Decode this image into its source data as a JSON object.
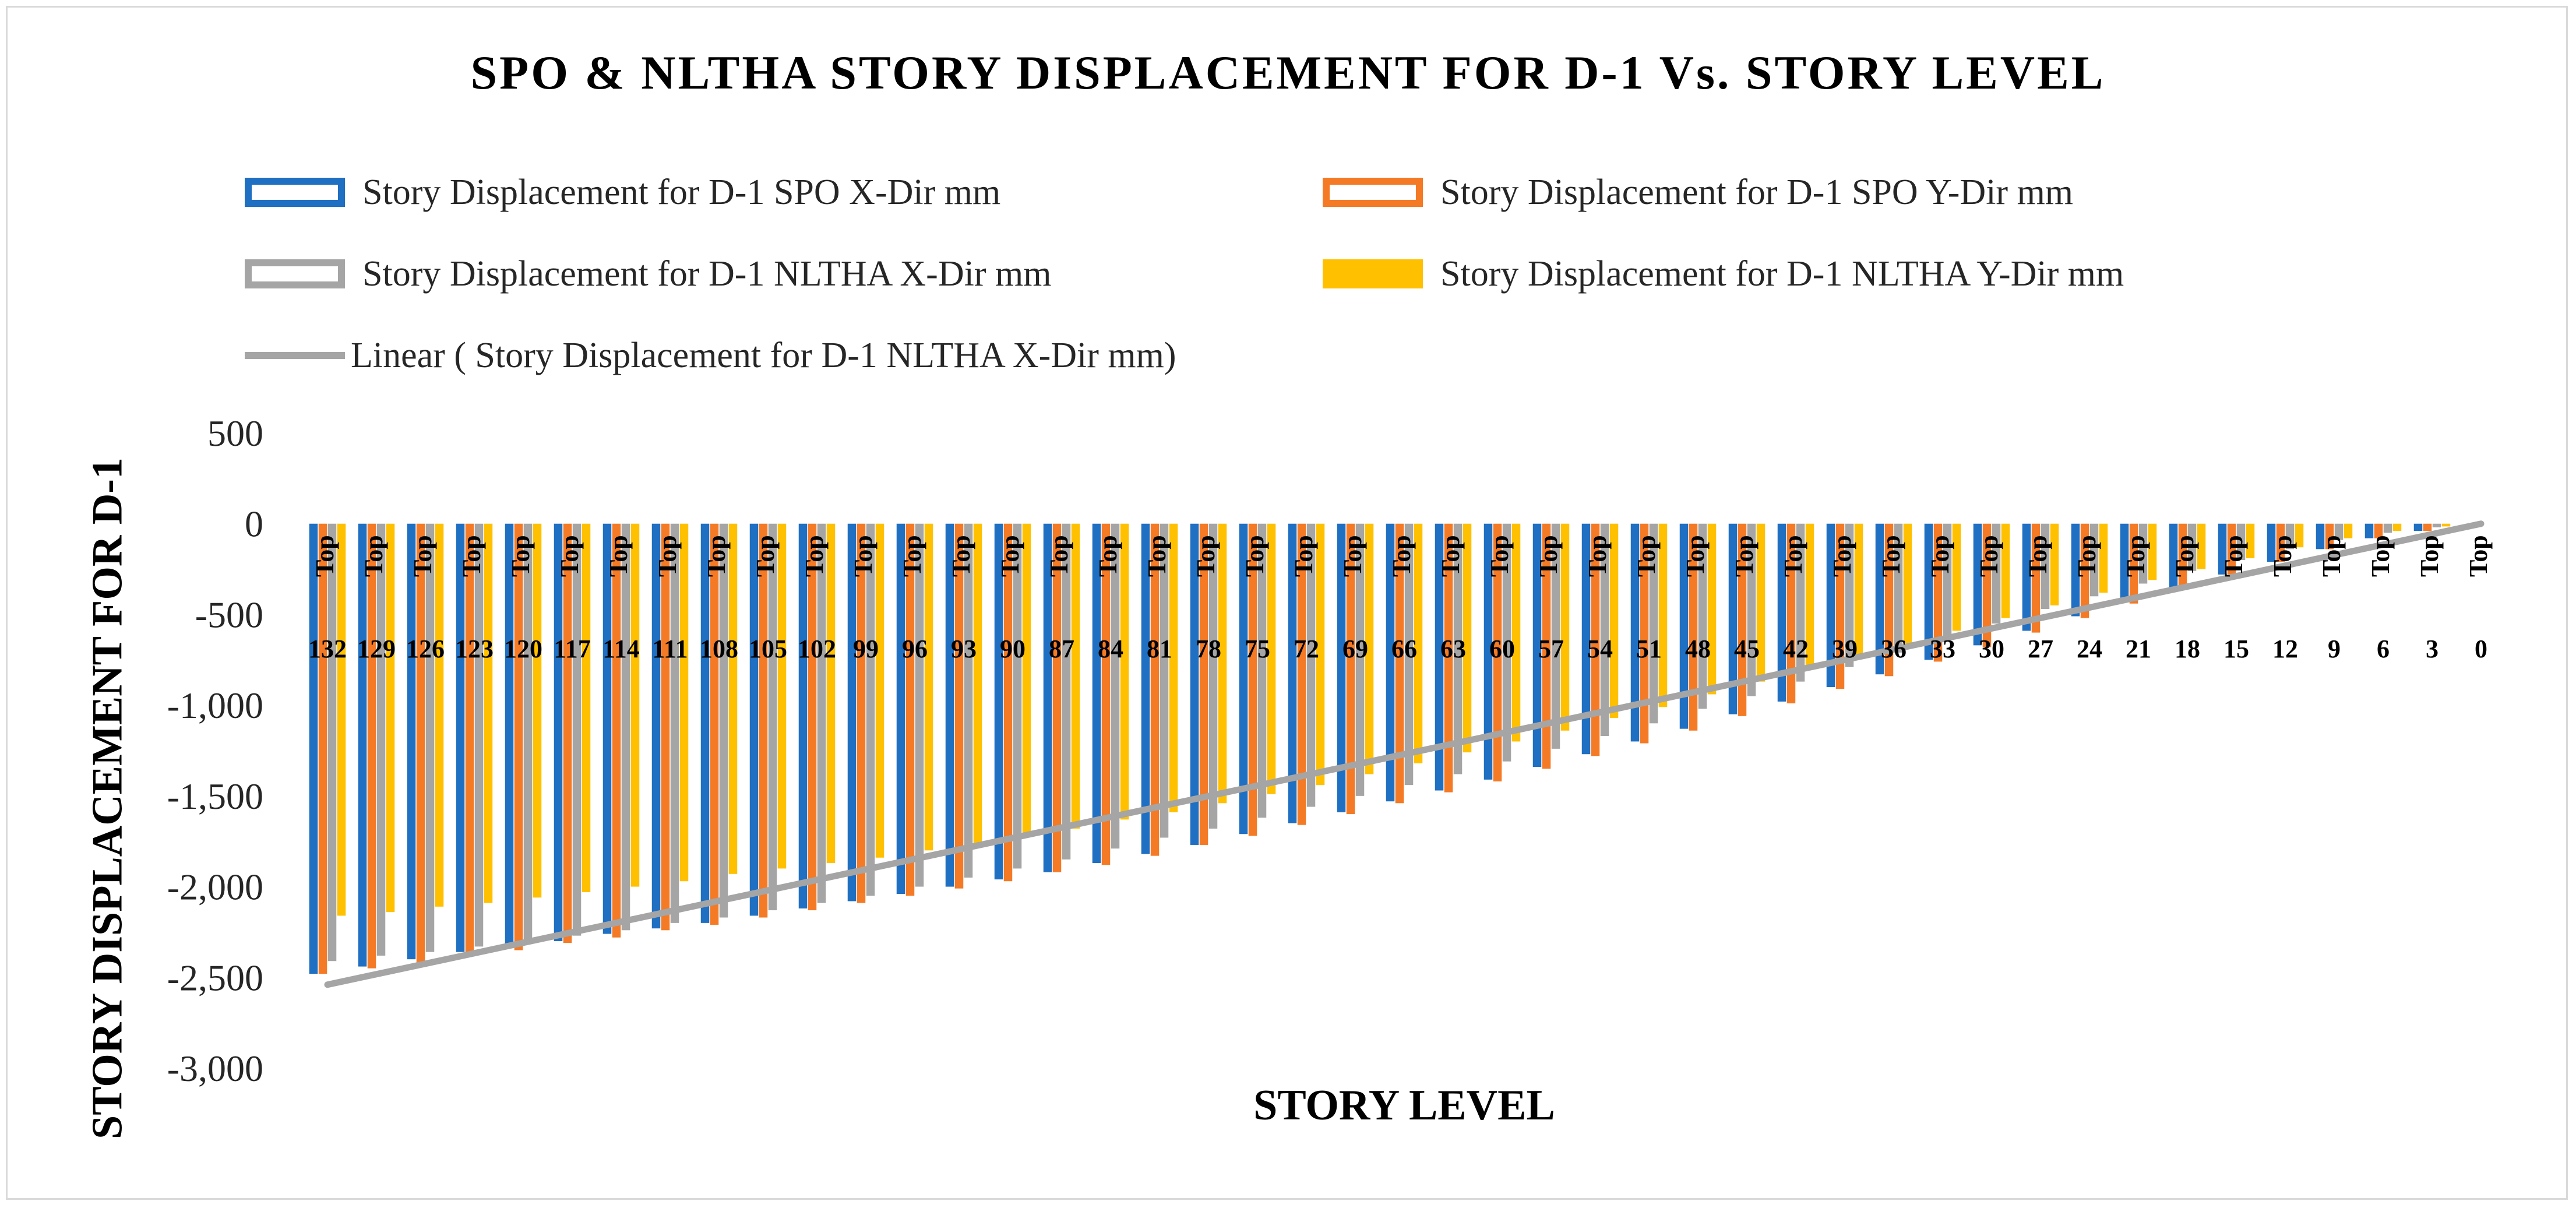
{
  "chart_data": {
    "type": "bar",
    "title": "SPO & NLTHA STORY DISPLACEMENT FOR D-1 Vs. STORY LEVEL",
    "xlabel": "STORY LEVEL",
    "ylabel": "STORY DISPLACEMENT FOR D-1",
    "ylim": [
      -3000,
      500
    ],
    "yticks": [
      500,
      0,
      -500,
      -1000,
      -1500,
      -2000,
      -2500,
      -3000
    ],
    "ytick_labels": [
      "500",
      "0",
      "-500",
      "-1,000",
      "-1,500",
      "-2,000",
      "-2,500",
      "-3,000"
    ],
    "category_top_label": "Top",
    "categories": [
      "132",
      "129",
      "126",
      "123",
      "120",
      "117",
      "114",
      "111",
      "108",
      "105",
      "102",
      "99",
      "96",
      "93",
      "90",
      "87",
      "84",
      "81",
      "78",
      "75",
      "72",
      "69",
      "66",
      "63",
      "60",
      "57",
      "54",
      "51",
      "48",
      "45",
      "42",
      "39",
      "36",
      "33",
      "30",
      "27",
      "24",
      "21",
      "18",
      "15",
      "12",
      "9",
      "6",
      "3",
      "0"
    ],
    "series": [
      {
        "name": "Story Displacement for D-1 SPO X-Dir mm",
        "color": "#1f6fc2",
        "values": [
          -2480,
          -2440,
          -2400,
          -2360,
          -2330,
          -2300,
          -2260,
          -2230,
          -2200,
          -2160,
          -2120,
          -2080,
          -2040,
          -2000,
          -1960,
          -1920,
          -1870,
          -1820,
          -1770,
          -1710,
          -1650,
          -1590,
          -1530,
          -1470,
          -1410,
          -1340,
          -1270,
          -1200,
          -1130,
          -1050,
          -980,
          -900,
          -830,
          -750,
          -670,
          -590,
          -510,
          -430,
          -350,
          -280,
          -210,
          -140,
          -80,
          -40,
          0
        ]
      },
      {
        "name": "Story Displacement for D-1 SPO Y-Dir mm",
        "color": "#f47a25",
        "values": [
          -2480,
          -2450,
          -2420,
          -2380,
          -2350,
          -2310,
          -2280,
          -2240,
          -2210,
          -2170,
          -2130,
          -2090,
          -2050,
          -2010,
          -1970,
          -1920,
          -1880,
          -1830,
          -1770,
          -1720,
          -1660,
          -1600,
          -1540,
          -1480,
          -1420,
          -1350,
          -1280,
          -1210,
          -1140,
          -1060,
          -990,
          -910,
          -840,
          -760,
          -680,
          -600,
          -520,
          -440,
          -360,
          -280,
          -210,
          -140,
          -80,
          -40,
          0
        ]
      },
      {
        "name": "Story Displacement for D-1 NLTHA X-Dir mm",
        "color": "#a5a5a5",
        "values": [
          -2410,
          -2380,
          -2360,
          -2330,
          -2300,
          -2270,
          -2240,
          -2200,
          -2170,
          -2130,
          -2090,
          -2050,
          -2000,
          -1950,
          -1900,
          -1850,
          -1790,
          -1730,
          -1680,
          -1620,
          -1560,
          -1500,
          -1440,
          -1380,
          -1310,
          -1240,
          -1170,
          -1100,
          -1020,
          -950,
          -870,
          -790,
          -710,
          -630,
          -550,
          -470,
          -400,
          -330,
          -260,
          -200,
          -140,
          -90,
          -50,
          -20,
          0
        ]
      },
      {
        "name": "Story Displacement for D-1 NLTHA Y-Dir mm",
        "color": "#ffc000",
        "values": [
          -2160,
          -2140,
          -2110,
          -2090,
          -2060,
          -2030,
          -2000,
          -1970,
          -1930,
          -1900,
          -1870,
          -1840,
          -1800,
          -1760,
          -1720,
          -1680,
          -1630,
          -1590,
          -1540,
          -1490,
          -1440,
          -1380,
          -1320,
          -1260,
          -1200,
          -1140,
          -1070,
          -1010,
          -940,
          -870,
          -800,
          -730,
          -660,
          -590,
          -520,
          -450,
          -380,
          -310,
          -250,
          -190,
          -130,
          -80,
          -40,
          -15,
          0
        ]
      }
    ],
    "trendline": {
      "name": "Linear ( Story Displacement for D-1 NLTHA X-Dir mm)",
      "color": "#a5a5a5",
      "start": -2540,
      "end": 0
    }
  }
}
